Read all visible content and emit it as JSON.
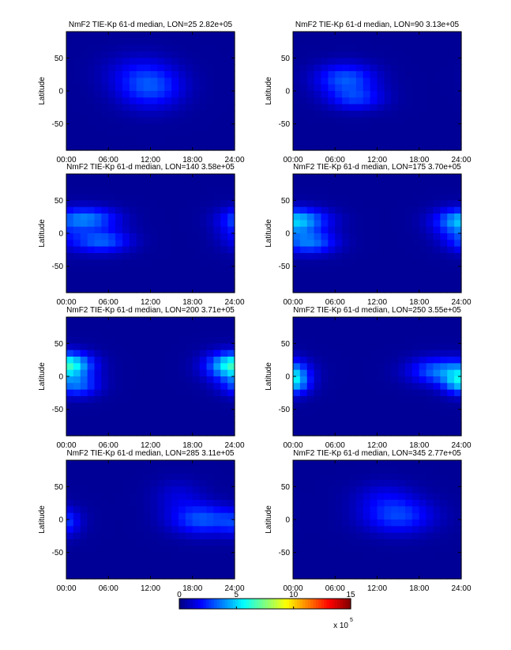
{
  "chart_data": [
    {
      "type": "heatmap",
      "title": "NmF2  TIE-Kp 61-d median, LON=25 2.82e+05",
      "ylabel": "Latitude",
      "xlim": [
        0,
        24
      ],
      "ylim": [
        -90,
        90
      ],
      "xticks": [
        "00:00",
        "06:00",
        "12:00",
        "18:00",
        "24:00"
      ],
      "yticks": [
        "50",
        "0",
        "-50"
      ],
      "peaks": [
        {
          "ut": 12,
          "lat": 5,
          "value": 282000.0,
          "sx": 3.2,
          "sy": 22
        },
        {
          "ut": 10,
          "lat": 30,
          "value": 120000.0,
          "sx": 3.5,
          "sy": 20
        }
      ],
      "background": 35000.0
    },
    {
      "type": "heatmap",
      "title": "NmF2  TIE-Kp 61-d median, LON=90 3.13e+05",
      "ylabel": "Latitude",
      "xlim": [
        0,
        24
      ],
      "ylim": [
        -90,
        90
      ],
      "xticks": [
        "00:00",
        "06:00",
        "12:00",
        "18:00",
        "24:00"
      ],
      "yticks": [
        "50",
        "0",
        "-50"
      ],
      "peaks": [
        {
          "ut": 7.5,
          "lat": 18,
          "value": 313000.0,
          "sx": 3.0,
          "sy": 16
        },
        {
          "ut": 9,
          "lat": -12,
          "value": 240000.0,
          "sx": 2.8,
          "sy": 12
        }
      ],
      "background": 35000.0
    },
    {
      "type": "heatmap",
      "title": "NmF2  TIE-Kp 61-d median, LON=140 3.58e+05",
      "ylabel": "Latitude",
      "xlim": [
        0,
        24
      ],
      "ylim": [
        -90,
        90
      ],
      "xticks": [
        "00:00",
        "06:00",
        "12:00",
        "18:00",
        "24:00"
      ],
      "yticks": [
        "50",
        "0",
        "-50"
      ],
      "peaks": [
        {
          "ut": 3,
          "lat": 22,
          "value": 358000.0,
          "sx": 3.0,
          "sy": 12
        },
        {
          "ut": 5,
          "lat": -12,
          "value": 330000.0,
          "sx": 2.8,
          "sy": 12
        },
        {
          "ut": 24,
          "lat": 5,
          "value": 140000.0,
          "sx": 2.0,
          "sy": 20
        }
      ],
      "background": 35000.0
    },
    {
      "type": "heatmap",
      "title": "NmF2  TIE-Kp 61-d median, LON=175 3.70e+05",
      "ylabel": "Latitude",
      "xlim": [
        0,
        24
      ],
      "ylim": [
        -90,
        90
      ],
      "xticks": [
        "00:00",
        "06:00",
        "12:00",
        "18:00",
        "24:00"
      ],
      "yticks": [
        "50",
        "0",
        "-50"
      ],
      "peaks": [
        {
          "ut": 1,
          "lat": 20,
          "value": 370000.0,
          "sx": 3.0,
          "sy": 12
        },
        {
          "ut": 2.5,
          "lat": -14,
          "value": 340000.0,
          "sx": 2.6,
          "sy": 12
        },
        {
          "ut": 23.5,
          "lat": 10,
          "value": 200000.0,
          "sx": 2.4,
          "sy": 18
        }
      ],
      "background": 35000.0
    },
    {
      "type": "heatmap",
      "title": "NmF2  TIE-Kp 61-d median, LON=200 3.71e+05",
      "ylabel": "Latitude",
      "xlim": [
        0,
        24
      ],
      "ylim": [
        -90,
        90
      ],
      "xticks": [
        "00:00",
        "06:00",
        "12:00",
        "18:00",
        "24:00"
      ],
      "yticks": [
        "50",
        "0",
        "-50"
      ],
      "peaks": [
        {
          "ut": 0.3,
          "lat": 18,
          "value": 371000.0,
          "sx": 2.4,
          "sy": 12
        },
        {
          "ut": 1.5,
          "lat": -14,
          "value": 310000.0,
          "sx": 2.2,
          "sy": 12
        },
        {
          "ut": 23.5,
          "lat": 14,
          "value": 330000.0,
          "sx": 2.6,
          "sy": 16
        }
      ],
      "background": 35000.0
    },
    {
      "type": "heatmap",
      "title": "NmF2  TIE-Kp 61-d median, LON=250 3.55e+05",
      "ylabel": "Latitude",
      "xlim": [
        0,
        24
      ],
      "ylim": [
        -90,
        90
      ],
      "xticks": [
        "00:00",
        "06:00",
        "12:00",
        "18:00",
        "24:00"
      ],
      "yticks": [
        "50",
        "0",
        "-50"
      ],
      "peaks": [
        {
          "ut": 21,
          "lat": 8,
          "value": 355000.0,
          "sx": 3.0,
          "sy": 14
        },
        {
          "ut": 23.8,
          "lat": -12,
          "value": 280000.0,
          "sx": 1.8,
          "sy": 12
        },
        {
          "ut": 0.2,
          "lat": 0,
          "value": 260000.0,
          "sx": 1.5,
          "sy": 16
        }
      ],
      "background": 35000.0
    },
    {
      "type": "heatmap",
      "title": "NmF2  TIE-Kp 61-d median, LON=285 3.11e+05",
      "ylabel": "Latitude",
      "xlim": [
        0,
        24
      ],
      "ylim": [
        -90,
        90
      ],
      "xticks": [
        "00:00",
        "06:00",
        "12:00",
        "18:00",
        "24:00"
      ],
      "yticks": [
        "50",
        "0",
        "-50"
      ],
      "peaks": [
        {
          "ut": 19.5,
          "lat": 0,
          "value": 311000.0,
          "sx": 3.2,
          "sy": 16
        },
        {
          "ut": 16,
          "lat": 35,
          "value": 130000.0,
          "sx": 2.5,
          "sy": 18
        },
        {
          "ut": 0,
          "lat": -5,
          "value": 180000.0,
          "sx": 1.4,
          "sy": 14
        }
      ],
      "background": 35000.0
    },
    {
      "type": "heatmap",
      "title": "NmF2  TIE-Kp 61-d median, LON=345 2.77e+05",
      "ylabel": "Latitude",
      "xlim": [
        0,
        24
      ],
      "ylim": [
        -90,
        90
      ],
      "xticks": [
        "00:00",
        "06:00",
        "12:00",
        "18:00",
        "24:00"
      ],
      "yticks": [
        "50",
        "0",
        "-50"
      ],
      "peaks": [
        {
          "ut": 15,
          "lat": 5,
          "value": 277000.0,
          "sx": 3.5,
          "sy": 18
        },
        {
          "ut": 13,
          "lat": 35,
          "value": 130000.0,
          "sx": 3.0,
          "sy": 16
        }
      ],
      "background": 35000.0
    }
  ],
  "colorbar": {
    "colormap": "jet",
    "range": [
      0,
      1500000
    ],
    "tick_labels": [
      "0",
      "5",
      "10",
      "15"
    ],
    "multiplier": "x 10",
    "exponent": "5"
  }
}
